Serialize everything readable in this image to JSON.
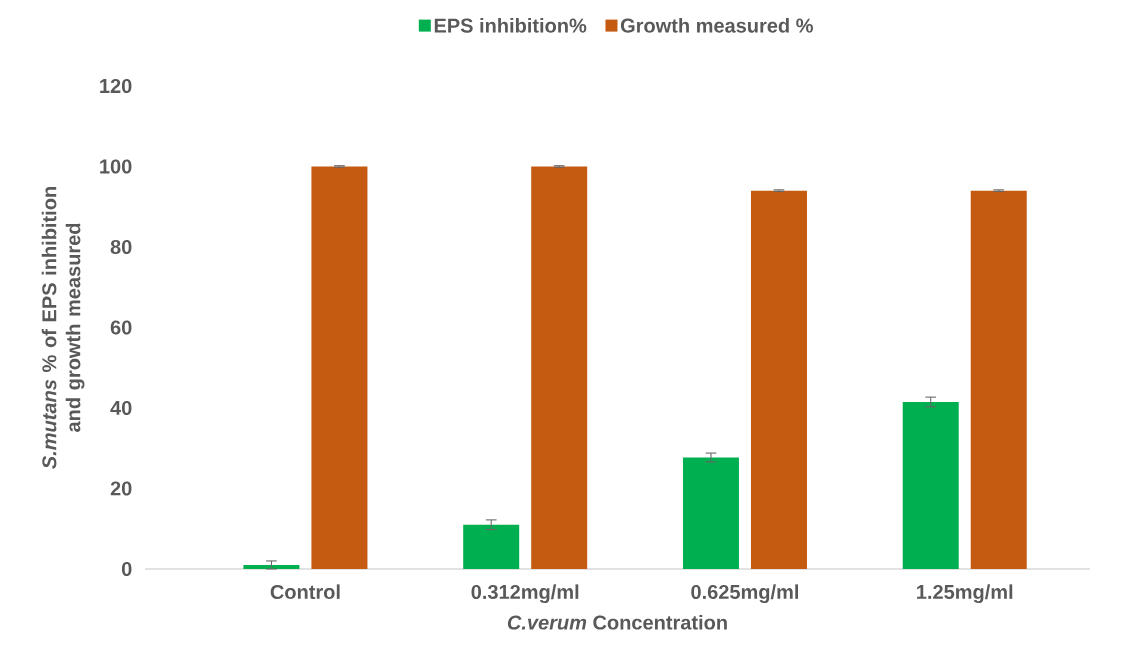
{
  "chart_data": {
    "type": "bar",
    "xlabel": "*C.verum* Concentration",
    "ylabel": "*S.mutans* % of EPS inhibition and growth measured",
    "categories": [
      "Control",
      "0.312mg/ml",
      "0.625mg/ml",
      "1.25mg/ml"
    ],
    "series": [
      {
        "name": "EPS inhibition%",
        "color": "#00b050",
        "values": [
          1,
          11,
          27.7,
          41.5
        ],
        "errors": [
          1,
          1.2,
          1.1,
          1.2
        ]
      },
      {
        "name": "Growth measured %",
        "color": "#c55a11",
        "values": [
          100,
          100,
          94,
          94
        ],
        "errors": [
          0.2,
          0.2,
          0.2,
          0.2
        ]
      }
    ],
    "ylim": [
      0,
      120
    ],
    "yticks": [
      0,
      20,
      40,
      60,
      80,
      100,
      120
    ],
    "legend": "top"
  }
}
